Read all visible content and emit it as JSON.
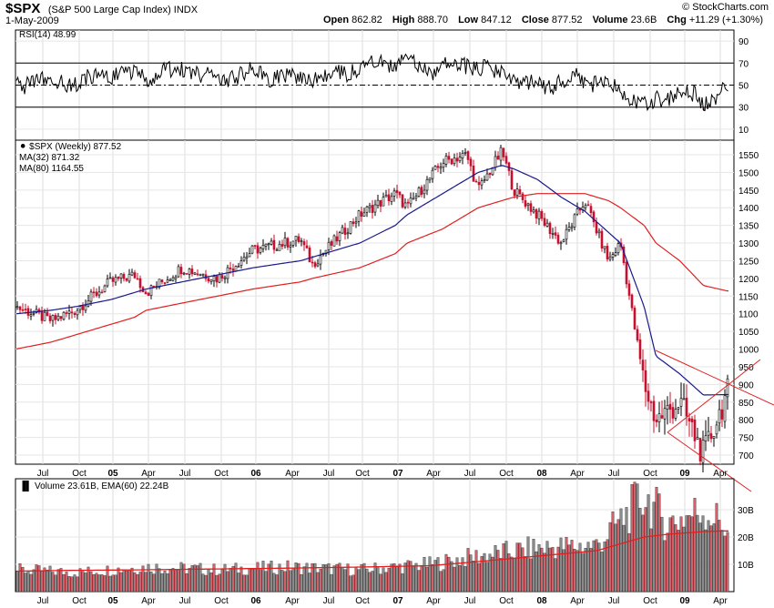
{
  "header": {
    "symbol": "$SPX",
    "name": "(S&P 500 Large Cap Index) INDX",
    "date": "1-May-2009",
    "watermark": "© StockCharts.com",
    "open_label": "Open",
    "open": "862.82",
    "high_label": "High",
    "high": "888.70",
    "low_label": "Low",
    "low": "847.12",
    "close_label": "Close",
    "close": "877.52",
    "volume_label": "Volume",
    "volume": "23.6B",
    "chg_label": "Chg",
    "chg": "+11.29 (+1.30%)"
  },
  "colors": {
    "ma32": "#1a1a8c",
    "ma80": "#e02020",
    "up": "#808080",
    "down": "#c8102e",
    "vol_up": "#8a8a8a",
    "vol_down": "#d4606a",
    "ema": "#e02020",
    "rsi_oversold": "#9a6a6a"
  },
  "chart_data": [
    {
      "type": "line",
      "panel": "rsi",
      "title": "RSI(14) 48.99",
      "ylim": [
        0,
        100
      ],
      "y_ticks": [
        90,
        70,
        50,
        30,
        10
      ],
      "ref_lines": [
        70,
        50,
        30
      ],
      "x": [
        "2004-05",
        "2004-07",
        "2004-10",
        "2005-01",
        "2005-04",
        "2005-07",
        "2005-10",
        "2006-01",
        "2006-04",
        "2006-07",
        "2006-10",
        "2007-01",
        "2007-04",
        "2007-07",
        "2007-10",
        "2008-01",
        "2008-04",
        "2008-07",
        "2008-10",
        "2009-01",
        "2009-03",
        "2009-05"
      ],
      "values": [
        50,
        55,
        52,
        60,
        58,
        64,
        56,
        62,
        55,
        58,
        66,
        72,
        64,
        70,
        60,
        48,
        56,
        52,
        30,
        45,
        35,
        49
      ]
    },
    {
      "type": "candlestick",
      "panel": "price",
      "title": "$SPX (Weekly) 877.52",
      "legend": [
        "MA(32) 871.32",
        "MA(80) 1164.55"
      ],
      "ylim": [
        650,
        1600
      ],
      "y_ticks": [
        1550,
        1500,
        1450,
        1400,
        1350,
        1300,
        1250,
        1200,
        1150,
        1100,
        1050,
        1000,
        950,
        900,
        850,
        800,
        750,
        700
      ],
      "x_ticks": [
        "Jul",
        "Oct",
        "05",
        "Apr",
        "Jul",
        "Oct",
        "06",
        "Apr",
        "Jul",
        "Oct",
        "07",
        "Apr",
        "Jul",
        "Oct",
        "08",
        "Apr",
        "Jul",
        "Oct",
        "09",
        "Apr"
      ],
      "x": [
        "2004-05",
        "2004-08",
        "2004-10",
        "2005-01",
        "2005-03",
        "2005-04",
        "2005-07",
        "2005-10",
        "2006-01",
        "2006-05",
        "2006-06",
        "2006-10",
        "2007-01",
        "2007-02",
        "2007-05",
        "2007-07",
        "2007-08",
        "2007-10",
        "2007-11",
        "2008-01",
        "2008-03",
        "2008-05",
        "2008-07",
        "2008-08",
        "2008-10",
        "2008-11",
        "2009-01",
        "2009-03",
        "2009-05"
      ],
      "close": [
        1120,
        1080,
        1110,
        1190,
        1210,
        1160,
        1230,
        1200,
        1280,
        1310,
        1240,
        1380,
        1440,
        1400,
        1530,
        1550,
        1450,
        1560,
        1450,
        1380,
        1300,
        1420,
        1250,
        1300,
        900,
        800,
        850,
        700,
        877.52
      ],
      "ma32": [
        1100,
        1110,
        1120,
        1140,
        1160,
        1170,
        1190,
        1210,
        1230,
        1250,
        1260,
        1300,
        1350,
        1380,
        1440,
        1480,
        1500,
        1520,
        1510,
        1480,
        1430,
        1390,
        1330,
        1300,
        1120,
        980,
        930,
        870,
        871.32
      ],
      "ma80": [
        1000,
        1020,
        1040,
        1070,
        1090,
        1110,
        1130,
        1150,
        1170,
        1190,
        1200,
        1230,
        1270,
        1300,
        1340,
        1380,
        1400,
        1420,
        1430,
        1440,
        1440,
        1440,
        1420,
        1400,
        1350,
        1300,
        1250,
        1180,
        1164.55
      ],
      "annotations": [
        "triangle pattern trendlines 2008-10 to 2009-05"
      ]
    },
    {
      "type": "bar",
      "panel": "volume",
      "title": "Volume 23.61B, EMA(60) 22.24B",
      "ylim": [
        0,
        40
      ],
      "y_ticks": [
        "30B",
        "20B",
        "10B"
      ],
      "x_ticks": [
        "Jul",
        "Oct",
        "05",
        "Apr",
        "Jul",
        "Oct",
        "06",
        "Apr",
        "Jul",
        "Oct",
        "07",
        "Apr",
        "Jul",
        "Oct",
        "08",
        "Apr",
        "Jul",
        "Oct",
        "09",
        "Apr"
      ],
      "x": [
        "2004-05",
        "2004-10",
        "2005-04",
        "2005-10",
        "2006-04",
        "2006-10",
        "2007-04",
        "2007-08",
        "2008-01",
        "2008-06",
        "2008-10",
        "2008-12",
        "2009-03",
        "2009-05"
      ],
      "values": [
        8,
        7,
        9,
        8,
        9,
        8,
        10,
        13,
        16,
        17,
        35,
        25,
        30,
        23.61
      ],
      "ema60": [
        7.5,
        7.8,
        8,
        8.3,
        8.6,
        9,
        9.5,
        11,
        13,
        15,
        20,
        21,
        22,
        22.24
      ]
    }
  ]
}
